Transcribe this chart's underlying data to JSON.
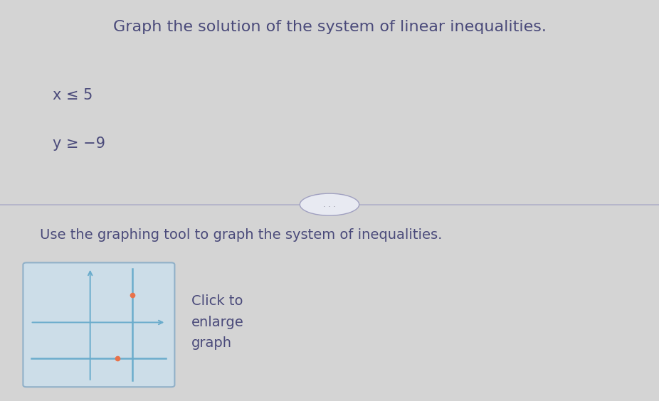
{
  "bg_color": "#d4d4d4",
  "title_text": "Graph the solution of the system of linear inequalities.",
  "ineq1": "x ≤ 5",
  "ineq2": "y ≥ −9",
  "instruction": "Use the graphing tool to graph the system of inequalities.",
  "click_text": "Click to\nenlarge\ngraph",
  "title_color": "#4a4a7a",
  "text_color": "#4a4a7a",
  "divider_color": "#b0b0c8",
  "graph_bg": "#ccdde8",
  "axis_color": "#6aaccc",
  "line_color_vertical": "#6aaccc",
  "line_color_horizontal": "#6aaccc",
  "dot_color": "#e8724a",
  "title_fontsize": 16,
  "body_fontsize": 15,
  "instr_fontsize": 14
}
